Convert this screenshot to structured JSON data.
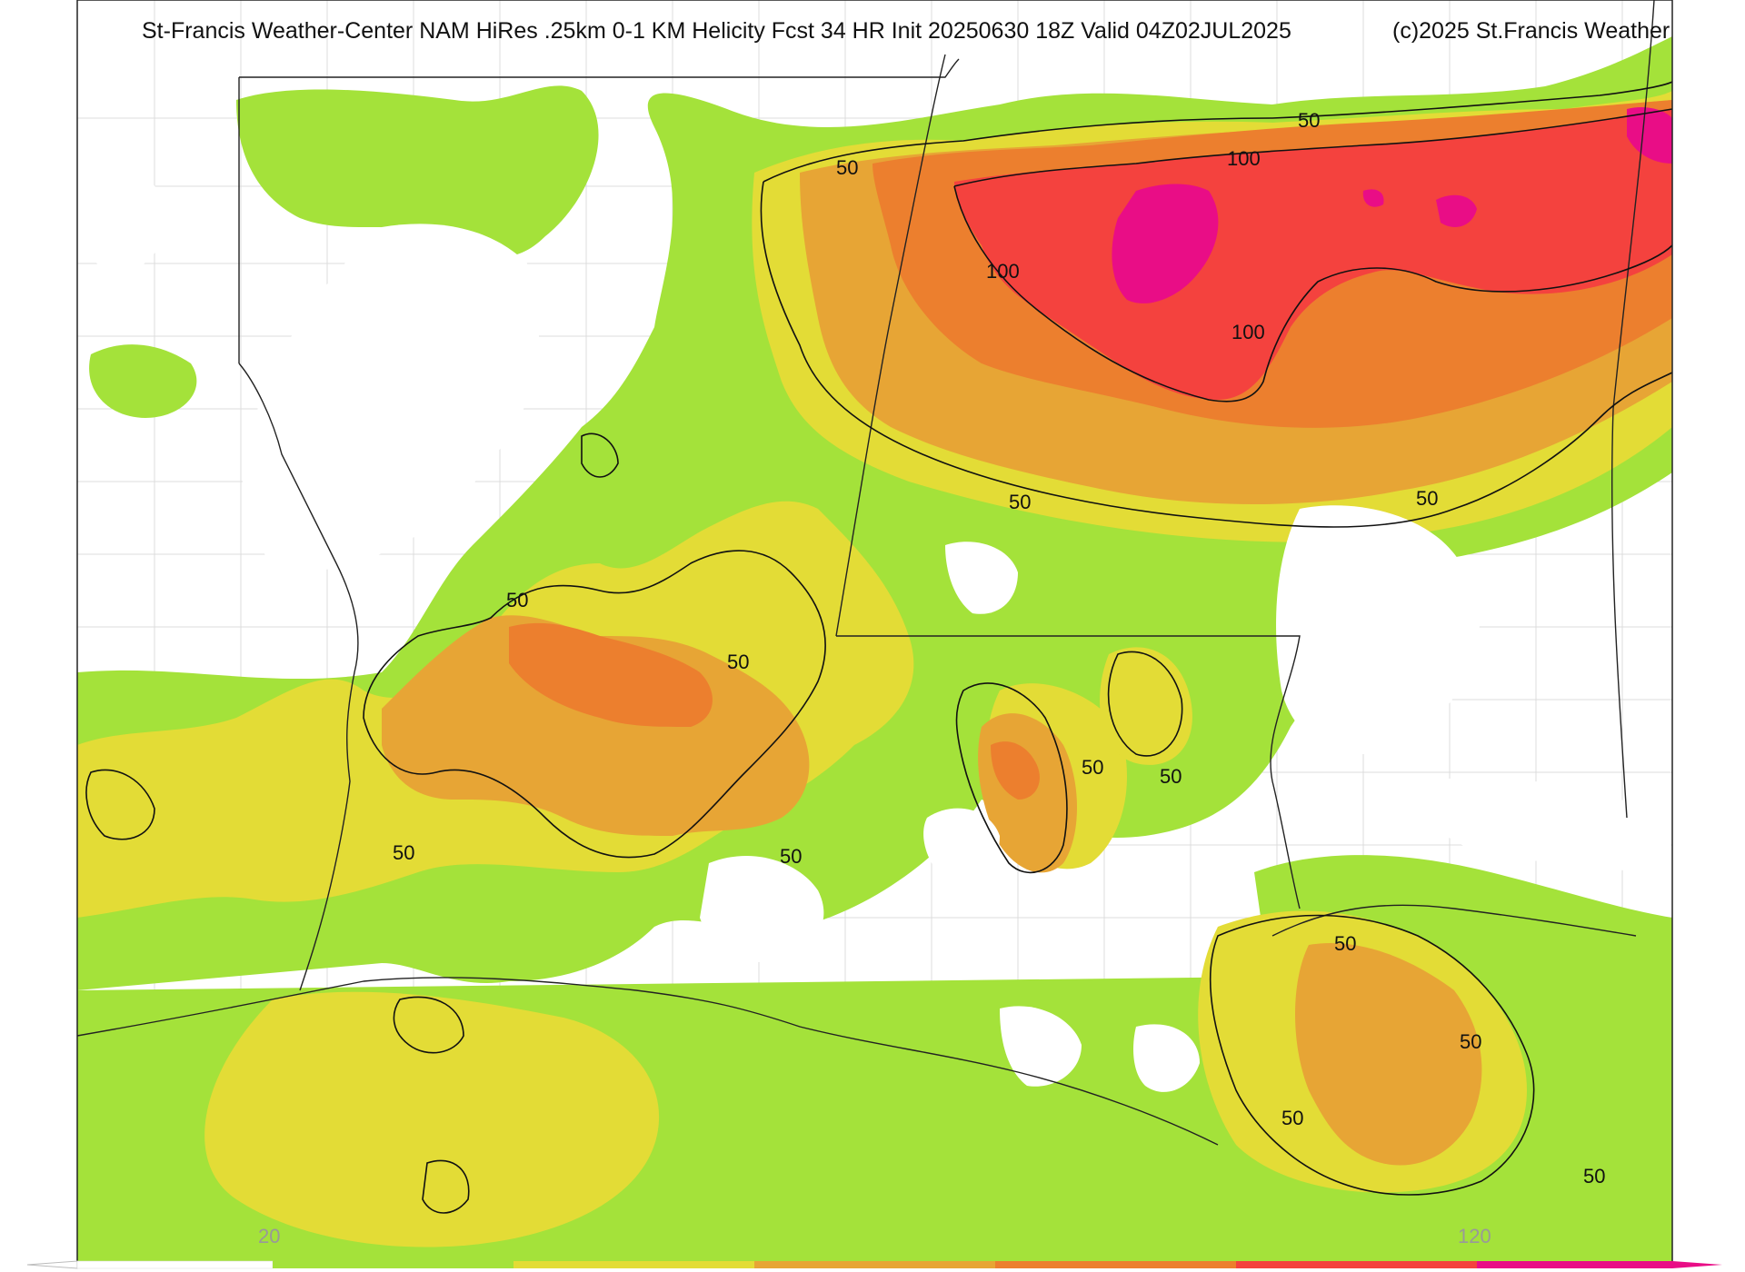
{
  "title": "St-Francis Weather-Center NAM HiRes .25km 0-1 KM Helicity Fcst 34 HR Init 20250630 18Z  Valid 04Z02JUL2025",
  "copyright": "(c)2025 St.Francis Weather",
  "contour_labels": [
    "50",
    "100"
  ],
  "colorbar": {
    "tick_low": "20",
    "tick_high": "120",
    "colors": [
      "#ffffff",
      "#a4e23a",
      "#e3dc36",
      "#e7a535",
      "#ec7f2e",
      "#f4423e",
      "#e90d86"
    ]
  },
  "colors": {
    "background": "#ffffff",
    "band_20_50": "#a4e23a",
    "band_50_60": "#e3dc36",
    "band_60_80": "#e7a535",
    "band_80_100": "#ec7f2e",
    "band_100_120": "#f4423e",
    "band_120_plus": "#e90d86"
  }
}
